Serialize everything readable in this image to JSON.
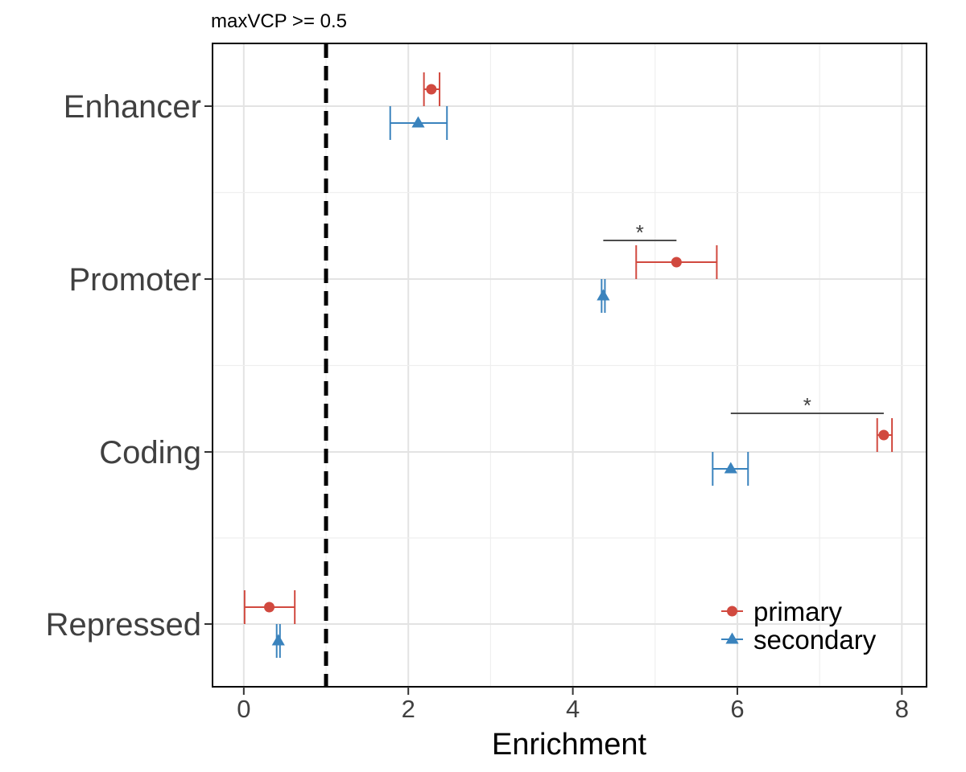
{
  "chart_data": {
    "type": "scatter",
    "title": "maxVCP >= 0.5",
    "xlabel": "Enrichment",
    "ylabel": "",
    "xlim": [
      -0.38,
      8.3
    ],
    "x_ticks": [
      0,
      2,
      4,
      6,
      8
    ],
    "x_tick_labels": [
      "0",
      "2",
      "4",
      "6",
      "8"
    ],
    "categories": [
      "Enhancer",
      "Promoter",
      "Coding",
      "Repressed"
    ],
    "reference_line": {
      "x": 1,
      "style": "dashed",
      "color": "#000000"
    },
    "grid": true,
    "legend_position": "bottom-right",
    "series": [
      {
        "name": "primary",
        "color": "#d1493f",
        "marker": "circle",
        "values": [
          2.28,
          5.26,
          7.78,
          0.31
        ],
        "lower": [
          2.19,
          4.77,
          7.7,
          0.01
        ],
        "upper": [
          2.38,
          5.75,
          7.88,
          0.62
        ]
      },
      {
        "name": "secondary",
        "color": "#3a83bd",
        "marker": "triangle",
        "values": [
          2.12,
          4.37,
          5.92,
          0.42
        ],
        "lower": [
          1.78,
          4.35,
          5.7,
          0.4
        ],
        "upper": [
          2.47,
          4.39,
          6.13,
          0.44
        ]
      }
    ],
    "significance": [
      {
        "category": "Promoter",
        "from": 4.37,
        "to": 5.26,
        "label": "*"
      },
      {
        "category": "Coding",
        "from": 5.92,
        "to": 7.78,
        "label": "*"
      }
    ]
  }
}
